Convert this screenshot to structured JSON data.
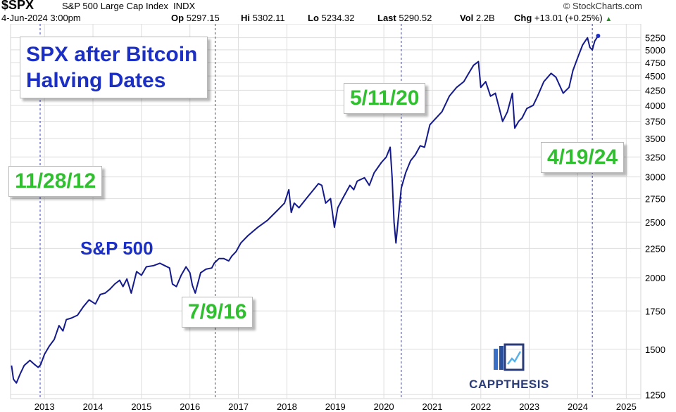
{
  "header": {
    "symbol": "$SPX",
    "index_name": "S&P 500 Large Cap Index",
    "exchange": "INDX",
    "brand": "© StockCharts.com",
    "datetime": "4-Jun-2024 3:00pm",
    "quotes": [
      {
        "label": "Op",
        "value": "5297.15"
      },
      {
        "label": "Hi",
        "value": "5302.11"
      },
      {
        "label": "Lo",
        "value": "5234.32"
      },
      {
        "label": "Last",
        "value": "5290.52"
      },
      {
        "label": "Vol",
        "value": "2.2B"
      },
      {
        "label": "Chg",
        "value": "+13.01 (+0.25%)"
      }
    ],
    "change_direction": "up"
  },
  "logo": {
    "text": "CAPPTHESIS",
    "icon": "chart-book-icon"
  },
  "colors": {
    "line": "#141a8c",
    "marker": "#1e2ec8",
    "title_text": "#1c2fc4",
    "date_text": "#2fbf2f",
    "grid": "#dedede"
  },
  "chart_data": {
    "type": "line",
    "title": "SPX after Bitcoin Halving Dates",
    "title_lines": [
      "SPX after Bitcoin",
      "Halving Dates"
    ],
    "series_label": "S&P 500",
    "y_scale": "log",
    "ylim": [
      1230,
      5550
    ],
    "xlim": [
      2012.3,
      2025.3
    ],
    "y_ticks": [
      1250,
      1500,
      1750,
      2000,
      2250,
      2500,
      2750,
      3000,
      3250,
      3500,
      3750,
      4000,
      4250,
      4500,
      4750,
      5000,
      5250
    ],
    "x_ticks": [
      2013,
      2014,
      2015,
      2016,
      2017,
      2018,
      2019,
      2020,
      2021,
      2022,
      2023,
      2024,
      2025
    ],
    "grid": true,
    "halving_dates": [
      {
        "label": "11/28/12",
        "x": 2012.91
      },
      {
        "label": "7/9/16",
        "x": 2016.52
      },
      {
        "label": "5/11/20",
        "x": 2020.36
      },
      {
        "label": "4/19/24",
        "x": 2024.3
      }
    ],
    "series": [
      {
        "x": [
          2012.32,
          2012.36,
          2012.42,
          2012.5,
          2012.58,
          2012.7,
          2012.8,
          2012.87,
          2012.92,
          2013.0,
          2013.1,
          2013.2,
          2013.3,
          2013.38,
          2013.45,
          2013.55,
          2013.68,
          2013.8,
          2013.92,
          2014.05,
          2014.15,
          2014.25,
          2014.35,
          2014.45,
          2014.55,
          2014.62,
          2014.7,
          2014.79,
          2014.9,
          2015.0,
          2015.1,
          2015.25,
          2015.38,
          2015.48,
          2015.58,
          2015.64,
          2015.72,
          2015.82,
          2015.92,
          2016.0,
          2016.05,
          2016.11,
          2016.22,
          2016.33,
          2016.45,
          2016.5,
          2016.6,
          2016.7,
          2016.8,
          2016.86,
          2016.95,
          2017.05,
          2017.2,
          2017.4,
          2017.6,
          2017.8,
          2017.95,
          2018.04,
          2018.09,
          2018.15,
          2018.25,
          2018.4,
          2018.55,
          2018.65,
          2018.72,
          2018.8,
          2018.9,
          2018.98,
          2019.05,
          2019.15,
          2019.3,
          2019.38,
          2019.45,
          2019.6,
          2019.7,
          2019.8,
          2019.95,
          2020.05,
          2020.13,
          2020.17,
          2020.21,
          2020.25,
          2020.3,
          2020.36,
          2020.45,
          2020.55,
          2020.65,
          2020.75,
          2020.84,
          2020.95,
          2021.05,
          2021.2,
          2021.35,
          2021.5,
          2021.65,
          2021.75,
          2021.85,
          2021.95,
          2022.0,
          2022.1,
          2022.2,
          2022.3,
          2022.45,
          2022.55,
          2022.65,
          2022.7,
          2022.78,
          2022.85,
          2022.95,
          2023.08,
          2023.17,
          2023.3,
          2023.45,
          2023.55,
          2023.7,
          2023.82,
          2023.9,
          2024.0,
          2024.1,
          2024.2,
          2024.25,
          2024.3,
          2024.35,
          2024.42
        ],
        "values": [
          1405,
          1330,
          1310,
          1360,
          1405,
          1435,
          1410,
          1395,
          1410,
          1470,
          1520,
          1560,
          1650,
          1615,
          1690,
          1700,
          1720,
          1780,
          1830,
          1800,
          1870,
          1880,
          1910,
          1950,
          1980,
          1930,
          1990,
          1880,
          2050,
          2020,
          2090,
          2100,
          2120,
          2100,
          2080,
          1950,
          1930,
          2020,
          2090,
          2040,
          1940,
          1880,
          2040,
          2070,
          2080,
          2120,
          2160,
          2160,
          2140,
          2180,
          2220,
          2300,
          2370,
          2450,
          2520,
          2620,
          2700,
          2850,
          2600,
          2700,
          2650,
          2750,
          2850,
          2920,
          2900,
          2700,
          2750,
          2450,
          2650,
          2750,
          2900,
          2850,
          2950,
          2990,
          2900,
          3050,
          3180,
          3250,
          3380,
          3000,
          2500,
          2300,
          2550,
          2870,
          3050,
          3200,
          3280,
          3400,
          3380,
          3700,
          3780,
          3900,
          4150,
          4300,
          4400,
          4550,
          4700,
          4770,
          4300,
          4400,
          4150,
          4200,
          3750,
          3900,
          4200,
          3650,
          3750,
          3800,
          3950,
          4000,
          4150,
          4400,
          4550,
          4480,
          4200,
          4300,
          4600,
          4850,
          5100,
          5250,
          5050,
          5000,
          5180,
          5290
        ]
      }
    ]
  }
}
